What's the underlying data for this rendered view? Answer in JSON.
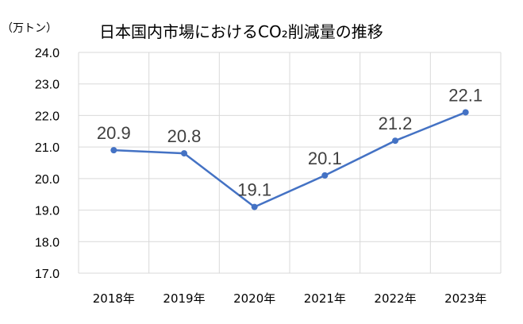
{
  "chart_data": {
    "type": "line",
    "title": "日本国内市場におけるCO₂削減量の推移",
    "ylabel": "（万トン）",
    "categories": [
      "2018年",
      "2019年",
      "2020年",
      "2021年",
      "2022年",
      "2023年"
    ],
    "values": [
      20.9,
      20.8,
      19.1,
      20.1,
      21.2,
      22.1
    ],
    "data_labels": [
      "20.9",
      "20.8",
      "19.1",
      "20.1",
      "21.2",
      "22.1"
    ],
    "ylim": [
      17.0,
      24.0
    ],
    "yticks": [
      "17.0",
      "18.0",
      "19.0",
      "20.0",
      "21.0",
      "22.0",
      "23.0",
      "24.0"
    ],
    "grid": true,
    "legend": "none",
    "colors": {
      "line": "#4472c4",
      "grid": "#d9d9d9",
      "label": "#404040"
    }
  }
}
